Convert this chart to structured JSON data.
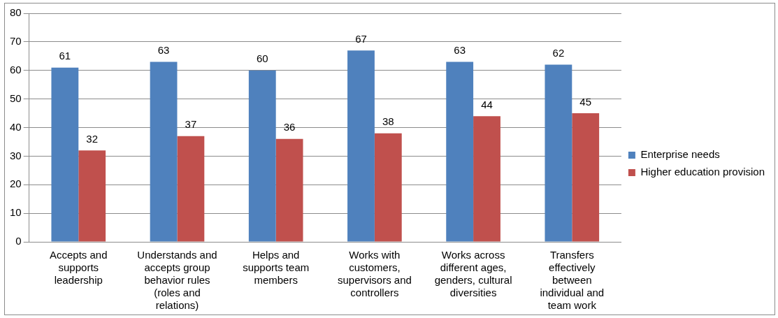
{
  "chart_data": {
    "type": "bar",
    "categories": [
      "Accepts and supports leadership",
      "Understands and accepts group behavior rules (roles and relations)",
      "Helps and supports team members",
      "Works with customers, supervisors and controllers",
      "Works across different ages, genders, cultural diversities",
      "Transfers effectively between individual and team work"
    ],
    "series": [
      {
        "name": "Enterprise needs",
        "color": "#4f81bd",
        "values": [
          61,
          63,
          60,
          67,
          63,
          62
        ]
      },
      {
        "name": "Higher education provision",
        "color": "#c0504d",
        "values": [
          32,
          37,
          36,
          38,
          44,
          45
        ]
      }
    ],
    "ylim": [
      0,
      80
    ],
    "yticks": [
      0,
      10,
      20,
      30,
      40,
      50,
      60,
      70,
      80
    ],
    "grid": "y",
    "legend": "right",
    "data_labels": true
  }
}
